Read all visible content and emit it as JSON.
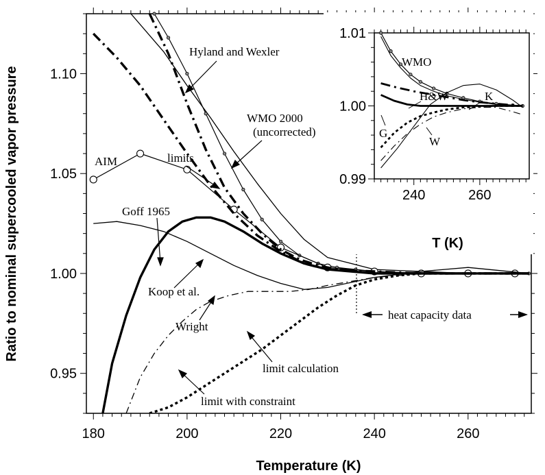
{
  "chart_data": [
    {
      "type": "line",
      "xlabel": "Temperature (K)",
      "ylabel": "Ratio to nominal supercooled vapor pressure",
      "xlim": [
        178.5,
        273.5
      ],
      "ylim": [
        0.93,
        1.13
      ],
      "xticks": [
        180,
        200,
        220,
        240,
        260
      ],
      "xtick_labels": [
        "180",
        "200",
        "220",
        "240",
        "260"
      ],
      "yticks": [
        0.95,
        1.0,
        1.05,
        1.1
      ],
      "ytick_labels": [
        "0.95",
        "1.00",
        "1.05",
        "1.10"
      ],
      "series": [
        {
          "name": "Hyland and Wexler",
          "style": "thin solid",
          "color": "#000000",
          "x": [
            188,
            195,
            200,
            205,
            210,
            215,
            220,
            225,
            230,
            240,
            250,
            260,
            273
          ],
          "y": [
            1.13,
            1.111,
            1.094,
            1.078,
            1.061,
            1.045,
            1.03,
            1.017,
            1.008,
            1.002,
            1.001,
            1.0,
            1.0
          ]
        },
        {
          "name": "WMO 2000 (uncorrected)",
          "style": "solid with small circles",
          "color": "#000000",
          "x": [
            193,
            196,
            200,
            204,
            208,
            212,
            216,
            220,
            224,
            228,
            232,
            236,
            240,
            250,
            260,
            273
          ],
          "y": [
            1.13,
            1.118,
            1.1,
            1.08,
            1.06,
            1.042,
            1.027,
            1.016,
            1.009,
            1.005,
            1.003,
            1.002,
            1.001,
            1.0,
            1.0,
            1.0
          ]
        },
        {
          "name": "AIM",
          "style": "solid with open circles",
          "color": "#000000",
          "x": [
            180,
            190,
            200,
            210,
            220,
            230,
            240,
            250,
            260,
            270
          ],
          "y": [
            1.047,
            1.06,
            1.052,
            1.032,
            1.013,
            1.003,
            1.001,
            1.0,
            1.0,
            1.0
          ]
        },
        {
          "name": "Goff 1965",
          "style": "thick dash-dot",
          "color": "#000000",
          "x": [
            180,
            185,
            190,
            195,
            200,
            205,
            210,
            215,
            220,
            225,
            230,
            240,
            250,
            260,
            273
          ],
          "y": [
            1.12,
            1.108,
            1.094,
            1.077,
            1.06,
            1.044,
            1.03,
            1.019,
            1.011,
            1.005,
            1.002,
            1.001,
            1.0,
            1.0,
            1.0
          ]
        },
        {
          "name": "limits",
          "style": "thick dash-dot",
          "color": "#000000",
          "x": [
            192,
            196,
            200,
            204,
            208,
            212,
            216,
            220,
            224,
            228,
            232,
            236,
            240,
            250,
            260,
            273
          ],
          "y": [
            1.13,
            1.11,
            1.085,
            1.062,
            1.043,
            1.03,
            1.02,
            1.012,
            1.007,
            1.004,
            1.002,
            1.001,
            1.0,
            1.0,
            1.0,
            1.0
          ]
        },
        {
          "name": "Koop et al.",
          "style": "thick solid",
          "color": "#000000",
          "x": [
            182,
            184,
            187,
            190,
            193,
            196,
            199,
            202,
            205,
            208,
            212,
            216,
            220,
            225,
            230,
            235,
            240,
            250,
            260,
            273
          ],
          "y": [
            0.93,
            0.955,
            0.979,
            0.998,
            1.012,
            1.021,
            1.026,
            1.028,
            1.028,
            1.026,
            1.021,
            1.015,
            1.01,
            1.005,
            1.002,
            1.001,
            1.0,
            1.0,
            1.0,
            1.0
          ]
        },
        {
          "name": "Wright",
          "style": "thin solid",
          "color": "#000000",
          "x": [
            180,
            185,
            190,
            195,
            200,
            205,
            210,
            215,
            220,
            225,
            230,
            240,
            250,
            260,
            273
          ],
          "y": [
            1.025,
            1.026,
            1.024,
            1.021,
            1.016,
            1.01,
            1.004,
            0.999,
            0.995,
            0.992,
            0.993,
            0.998,
            1.001,
            1.003,
            1.0
          ]
        },
        {
          "name": "limit calculation",
          "style": "thin dash-dot",
          "color": "#000000",
          "x": [
            187,
            190,
            193,
            196,
            199,
            202,
            205,
            209,
            213,
            218,
            222,
            226,
            230,
            240,
            250,
            260,
            273
          ],
          "y": [
            0.93,
            0.948,
            0.96,
            0.969,
            0.976,
            0.982,
            0.986,
            0.989,
            0.991,
            0.991,
            0.991,
            0.992,
            0.994,
            0.998,
            1.0,
            1.0,
            1.0
          ]
        },
        {
          "name": "limit with constraint",
          "style": "thick dotted",
          "color": "#000000",
          "x": [
            192,
            196,
            200,
            204,
            208,
            212,
            216,
            220,
            224,
            228,
            232,
            236,
            240,
            245,
            250,
            260,
            273
          ],
          "y": [
            0.93,
            0.933,
            0.938,
            0.944,
            0.95,
            0.956,
            0.962,
            0.969,
            0.976,
            0.983,
            0.989,
            0.994,
            0.997,
            0.999,
            1.0,
            1.0,
            1.0
          ]
        }
      ],
      "annotations": [
        "Hyland and Wexler",
        "WMO 2000",
        "(uncorrected)",
        "AIM",
        "limits",
        "Goff 1965",
        "Koop et al.",
        "Wright",
        "limit calculation",
        "limit with constraint",
        "heat capacity data"
      ],
      "vertical_marker_x": 236,
      "grid": false
    },
    {
      "type": "line",
      "xlabel": "T (K)",
      "ylabel": "",
      "xlim": [
        228,
        275
      ],
      "ylim": [
        0.99,
        1.01
      ],
      "xticks": [
        240,
        260
      ],
      "xtick_labels": [
        "240",
        "260"
      ],
      "yticks": [
        0.99,
        1.0,
        1.01
      ],
      "ytick_labels": [
        "0.99",
        "1.00",
        "1.01"
      ],
      "series": [
        {
          "name": "WMO",
          "style": "solid with small circles",
          "color": "#000000",
          "x": [
            230,
            233,
            236,
            239,
            242,
            246,
            250,
            255,
            260,
            265,
            270,
            273
          ],
          "y": [
            1.01,
            1.0075,
            1.0057,
            1.0043,
            1.0033,
            1.0024,
            1.0017,
            1.0011,
            1.0006,
            1.0003,
            1.0001,
            1.0
          ]
        },
        {
          "name": "H&W",
          "style": "thin solid",
          "color": "#000000",
          "x": [
            230,
            233,
            236,
            239,
            242,
            246,
            250,
            255,
            260,
            265,
            270,
            273
          ],
          "y": [
            1.0095,
            1.0069,
            1.0052,
            1.0038,
            1.0028,
            1.002,
            1.0014,
            1.0009,
            1.0005,
            1.0002,
            1.0001,
            1.0
          ]
        },
        {
          "name": "",
          "style": "thick dash-dot",
          "color": "#000000",
          "x": [
            230,
            235,
            240,
            245,
            250,
            255,
            260,
            265,
            270,
            273
          ],
          "y": [
            1.0031,
            1.0025,
            1.002,
            1.0016,
            1.0012,
            1.0008,
            1.0005,
            1.0003,
            1.0001,
            1.0
          ]
        },
        {
          "name": "K",
          "style": "thin solid",
          "color": "#000000",
          "x": [
            230,
            235,
            240,
            245,
            250,
            255,
            260,
            265,
            270,
            273
          ],
          "y": [
            0.9915,
            0.9942,
            0.9972,
            1.0002,
            1.0018,
            1.0028,
            1.003,
            1.0022,
            1.0008,
            0.9998
          ]
        },
        {
          "name": "G",
          "style": "thick solid",
          "color": "#000000",
          "x": [
            230,
            234,
            238,
            242,
            246,
            250,
            255,
            260,
            265,
            270,
            273
          ],
          "y": [
            1.0015,
            1.0007,
            1.0002,
            1.0,
            1.0,
            1.0,
            1.0,
            1.0,
            1.0,
            1.0,
            1.0
          ]
        },
        {
          "name": "",
          "style": "thick dotted",
          "color": "#000000",
          "x": [
            230,
            234,
            238,
            242,
            246,
            250,
            255,
            260,
            265,
            270,
            273
          ],
          "y": [
            0.9943,
            0.9963,
            0.9977,
            0.9986,
            0.9991,
            0.9995,
            0.9998,
            0.9999,
            1.0,
            1.0,
            1.0
          ]
        },
        {
          "name": "W",
          "style": "thin dash-dot",
          "color": "#000000",
          "x": [
            230,
            234,
            238,
            242,
            246,
            250,
            255,
            260,
            265,
            270,
            273
          ],
          "y": [
            0.9925,
            0.9945,
            0.9962,
            0.9975,
            0.9985,
            0.9991,
            0.9996,
            0.9998,
            0.9998,
            0.9992,
            0.9988
          ]
        }
      ],
      "annotations": [
        "WMO",
        "H&W",
        "K",
        "G",
        "W"
      ],
      "grid": false
    }
  ]
}
